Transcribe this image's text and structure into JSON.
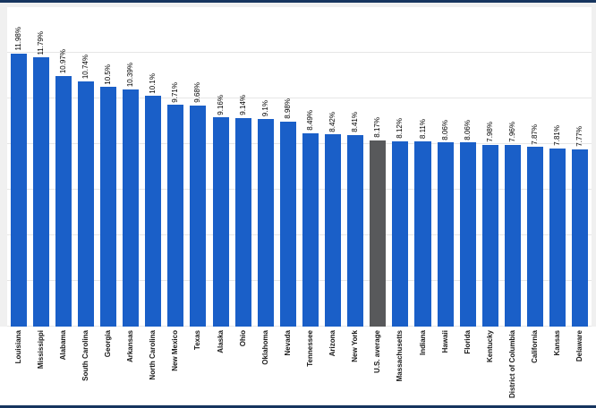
{
  "chart_data": {
    "type": "bar",
    "title": "",
    "xlabel": "",
    "ylabel": "",
    "legend": "none",
    "grid": true,
    "gridline_interval": 2,
    "ylim": [
      0,
      14
    ],
    "bar_color": "#1a5fc8",
    "highlight_color": "#58595b",
    "highlight_category": "U.S. average",
    "highlight_index": 16,
    "categories": [
      "Louisiana",
      "Mississippi",
      "Alabama",
      "South Carolina",
      "Georgia",
      "Arkansas",
      "North Carolina",
      "New Mexico",
      "Texas",
      "Alaska",
      "Ohio",
      "Oklahoma",
      "Nevada",
      "Tennessee",
      "Arizona",
      "New York",
      "U.S. average",
      "Massachusetts",
      "Indiana",
      "Hawaii",
      "Florida",
      "Kentucky",
      "District of Columbia",
      "California",
      "Kansas",
      "Delaware"
    ],
    "values": [
      11.98,
      11.79,
      10.97,
      10.74,
      10.5,
      10.39,
      10.1,
      9.71,
      9.68,
      9.16,
      9.14,
      9.1,
      8.98,
      8.49,
      8.42,
      8.41,
      8.17,
      8.12,
      8.11,
      8.06,
      8.06,
      7.98,
      7.96,
      7.87,
      7.81,
      7.77
    ],
    "value_labels": [
      "11.98%",
      "11.79%",
      "10.97%",
      "10.74%",
      "10.5%",
      "10.39%",
      "10.1%",
      "9.71%",
      "9.68%",
      "9.16%",
      "9.14%",
      "9.1%",
      "8.98%",
      "8.49%",
      "8.42%",
      "8.41%",
      "8.17%",
      "8.12%",
      "8.11%",
      "8.06%",
      "8.06%",
      "7.98%",
      "7.96%",
      "7.87%",
      "7.81%",
      "7.77%"
    ]
  },
  "frame": {
    "border_color": "#16355f",
    "plot_background": "#ffffff",
    "gridline_color": "#e6e6e6",
    "margin_color": "#f0f0f0"
  }
}
